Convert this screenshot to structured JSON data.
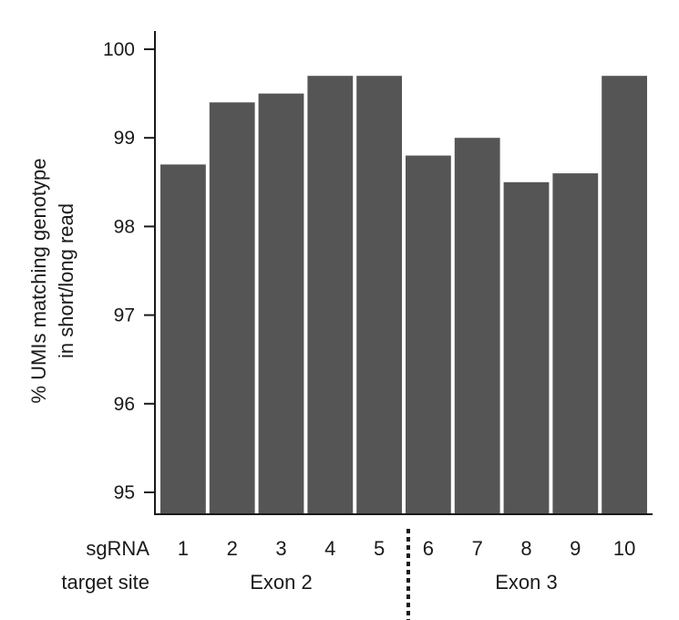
{
  "chart_data": {
    "type": "bar",
    "categories": [
      "1",
      "2",
      "3",
      "4",
      "5",
      "6",
      "7",
      "8",
      "9",
      "10"
    ],
    "values": [
      98.7,
      99.4,
      99.5,
      99.7,
      99.7,
      98.8,
      99.0,
      98.5,
      98.6,
      99.7
    ],
    "ylim": [
      94.75,
      100.3
    ],
    "yticks": [
      95,
      96,
      97,
      98,
      99,
      100
    ],
    "ylabel_line1": "% UMIs matching genotype",
    "ylabel_line2": "in short/long read",
    "xlabel_line1": "sgRNA",
    "xlabel_line2": "target site",
    "groups": [
      {
        "label": "Exon 2",
        "first": 0,
        "last": 4
      },
      {
        "label": "Exon 3",
        "first": 5,
        "last": 9
      }
    ],
    "bar_color": "#555555",
    "grid": false
  }
}
